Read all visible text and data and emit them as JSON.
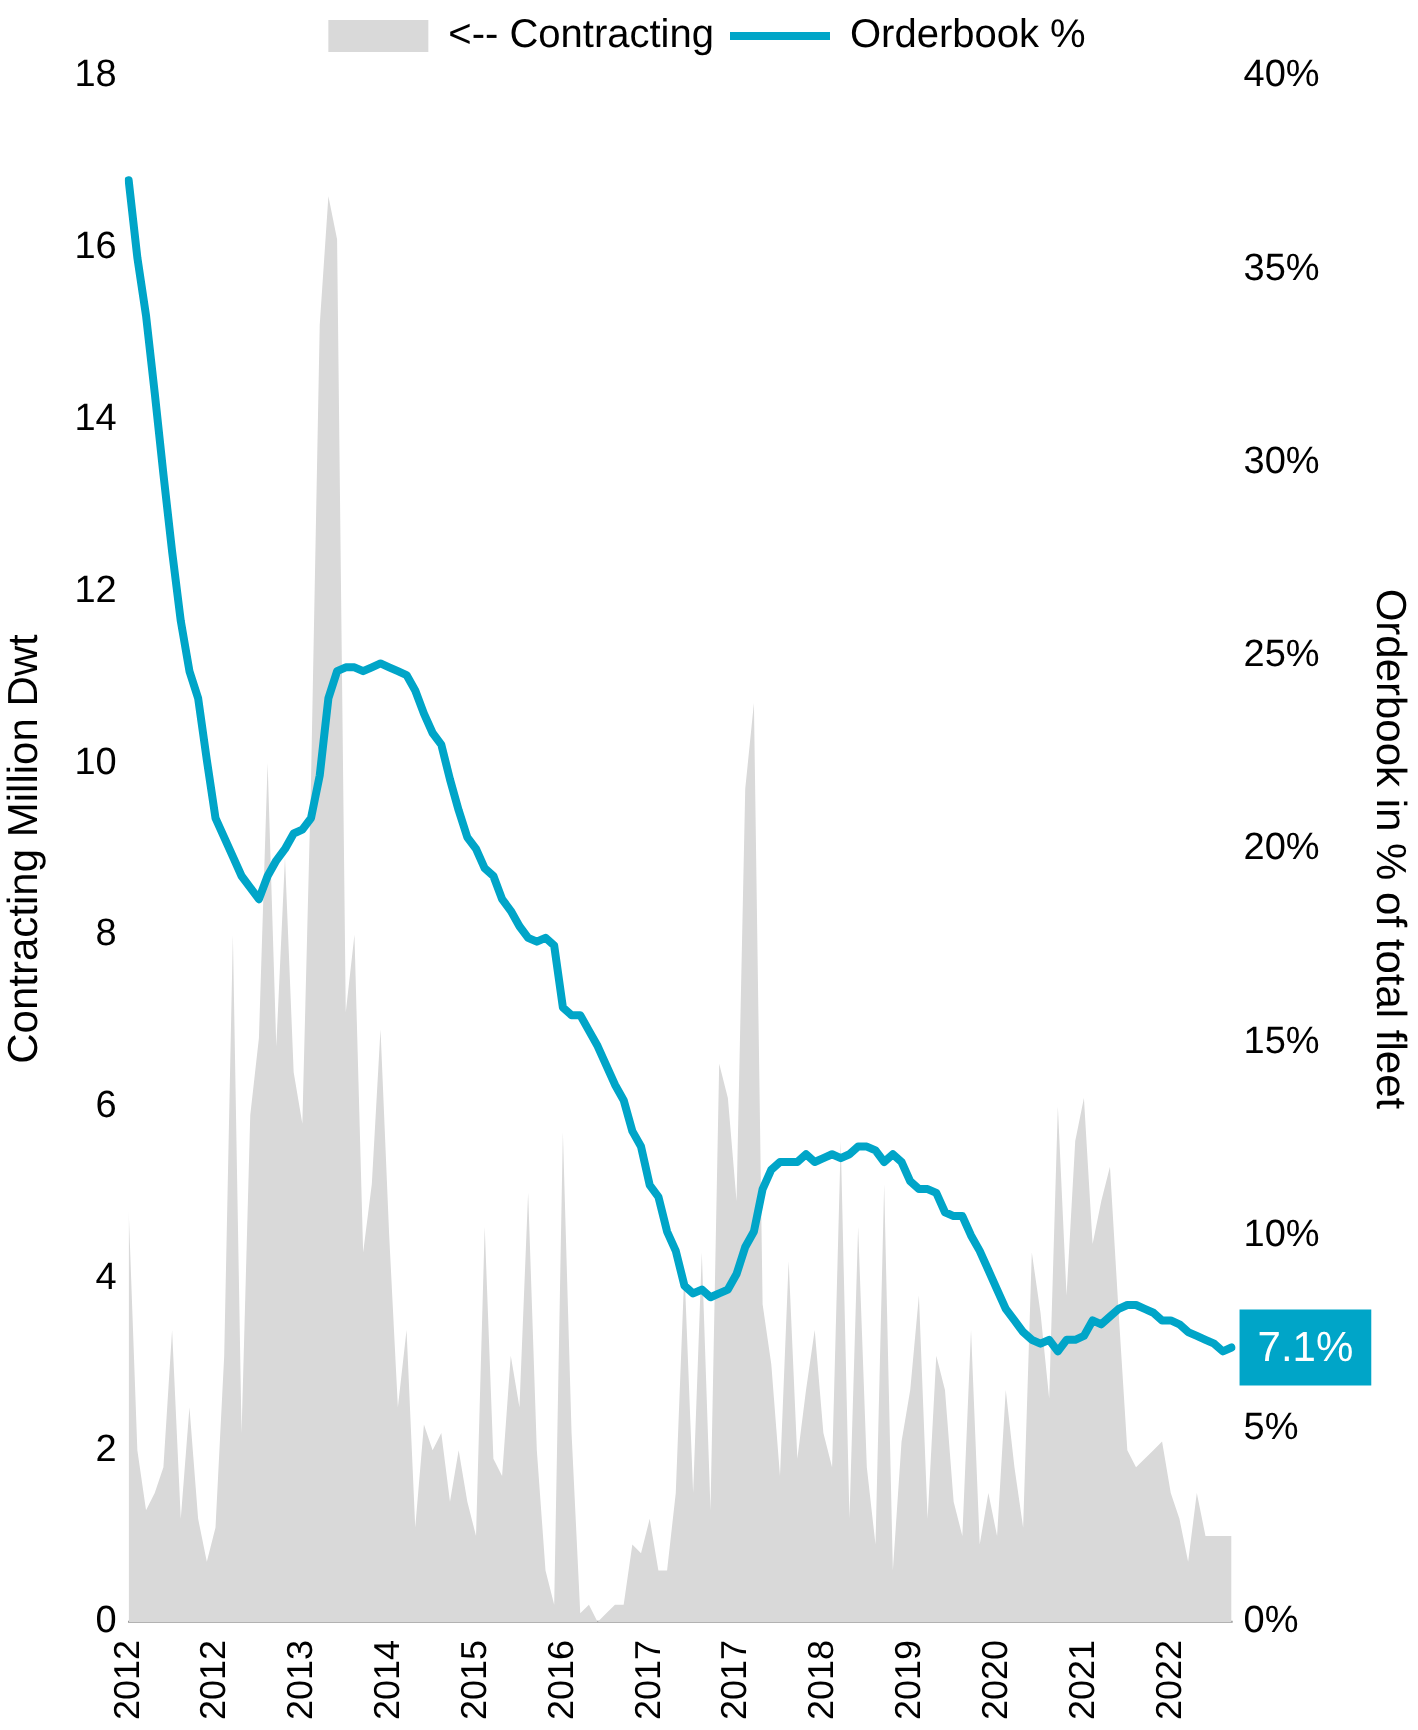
{
  "chart_data": {
    "type": "line",
    "ylabel": "Contracting Million Dwt",
    "y2label": "Orderbook in % of total fleet",
    "categories": [
      "2012",
      null,
      null,
      null,
      null,
      null,
      null,
      null,
      null,
      null,
      "2012",
      null,
      null,
      null,
      null,
      null,
      null,
      null,
      null,
      null,
      "2013",
      null,
      null,
      null,
      null,
      null,
      null,
      null,
      null,
      null,
      "2014",
      null,
      null,
      null,
      null,
      null,
      null,
      null,
      null,
      null,
      "2015",
      null,
      null,
      null,
      null,
      null,
      null,
      null,
      null,
      null,
      "2016",
      null,
      null,
      null,
      null,
      null,
      null,
      null,
      null,
      null,
      "2017",
      null,
      null,
      null,
      null,
      null,
      null,
      null,
      null,
      null,
      "2017",
      null,
      null,
      null,
      null,
      null,
      null,
      null,
      null,
      null,
      "2018",
      null,
      null,
      null,
      null,
      null,
      null,
      null,
      null,
      null,
      "2019",
      null,
      null,
      null,
      null,
      null,
      null,
      null,
      null,
      null,
      "2020",
      null,
      null,
      null,
      null,
      null,
      null,
      null,
      null,
      null,
      "2021",
      null,
      null,
      null,
      null,
      null,
      null,
      null,
      null,
      null,
      "2022",
      null,
      null,
      null,
      null,
      null,
      null,
      null
    ],
    "series": [
      {
        "name": "<-- Contracting",
        "type": "area",
        "axis": "y",
        "color": "#d9d9d9",
        "values": [
          4.8,
          2.0,
          1.3,
          1.5,
          1.8,
          3.4,
          1.2,
          2.5,
          1.2,
          0.7,
          1.1,
          3.1,
          8.0,
          2.2,
          5.9,
          6.8,
          10.0,
          6.7,
          8.9,
          6.4,
          5.8,
          9.8,
          15.1,
          16.6,
          16.1,
          7.1,
          8.0,
          4.3,
          5.1,
          6.9,
          4.5,
          2.5,
          3.4,
          1.1,
          2.3,
          2.0,
          2.2,
          1.4,
          2.0,
          1.4,
          1.0,
          4.6,
          1.9,
          1.7,
          3.1,
          2.5,
          5.0,
          2.0,
          0.6,
          0.2,
          5.7,
          2.2,
          0.1,
          0.2,
          0.0,
          0.1,
          0.2,
          0.2,
          0.9,
          0.8,
          1.2,
          0.6,
          0.6,
          1.5,
          4.1,
          1.5,
          4.3,
          1.3,
          6.5,
          6.1,
          4.9,
          9.7,
          10.7,
          3.7,
          3.0,
          1.7,
          4.2,
          1.9,
          2.7,
          3.4,
          2.2,
          1.8,
          5.6,
          1.2,
          4.6,
          1.8,
          0.9,
          5.1,
          0.6,
          2.1,
          2.7,
          3.8,
          1.2,
          3.1,
          2.7,
          1.4,
          1.0,
          3.4,
          0.9,
          1.5,
          1.0,
          2.7,
          1.8,
          1.1,
          4.3,
          3.6,
          2.6,
          6.0,
          3.8,
          5.6,
          6.1,
          4.4,
          4.9,
          5.3,
          3.6,
          2.0,
          1.8,
          1.9,
          2.0,
          2.1,
          1.5,
          1.2,
          0.7,
          1.5,
          1.0,
          1.0,
          1.0,
          1.0
        ]
      },
      {
        "name": "Orderbook %",
        "axis": "y2",
        "color": "#00a5c8",
        "values": [
          37.3,
          35.3,
          33.8,
          31.8,
          29.7,
          27.7,
          25.9,
          24.6,
          23.9,
          22.3,
          20.8,
          20.3,
          19.8,
          19.3,
          19.0,
          18.7,
          19.3,
          19.7,
          20.0,
          20.4,
          20.5,
          20.8,
          21.9,
          23.9,
          24.6,
          24.7,
          24.7,
          24.6,
          24.7,
          24.8,
          24.7,
          24.6,
          24.5,
          24.1,
          23.5,
          23.0,
          22.7,
          21.8,
          21.0,
          20.3,
          20.0,
          19.5,
          19.3,
          18.7,
          18.4,
          18.0,
          17.7,
          17.6,
          17.7,
          17.5,
          15.9,
          15.7,
          15.7,
          15.3,
          14.9,
          14.4,
          13.9,
          13.5,
          12.7,
          12.3,
          11.3,
          11.0,
          10.1,
          9.6,
          8.7,
          8.5,
          8.6,
          8.4,
          8.5,
          8.6,
          9.0,
          9.7,
          10.1,
          11.2,
          11.7,
          11.9,
          11.9,
          11.9,
          12.1,
          11.9,
          12.0,
          12.1,
          12.0,
          12.1,
          12.3,
          12.3,
          12.2,
          11.9,
          12.1,
          11.9,
          11.4,
          11.2,
          11.2,
          11.1,
          10.6,
          10.5,
          10.5,
          10.0,
          9.6,
          9.1,
          8.6,
          8.1,
          7.8,
          7.5,
          7.3,
          7.2,
          7.3,
          7.0,
          7.3,
          7.3,
          7.4,
          7.8,
          7.7,
          7.9,
          8.1,
          8.2,
          8.2,
          8.1,
          8.0,
          7.8,
          7.8,
          7.7,
          7.5,
          7.4,
          7.3,
          7.2,
          7.0,
          7.1
        ]
      }
    ],
    "ylim": [
      0,
      18
    ],
    "yticks": [
      0,
      2,
      4,
      6,
      8,
      10,
      12,
      14,
      16,
      18
    ],
    "y2lim": [
      0,
      40
    ],
    "y2ticks": [
      {
        "value": 0,
        "label": "0%"
      },
      {
        "value": 5,
        "label": "5%"
      },
      {
        "value": 10,
        "label": "10%"
      },
      {
        "value": 15,
        "label": "15%"
      },
      {
        "value": 20,
        "label": "20%"
      },
      {
        "value": 25,
        "label": "25%"
      },
      {
        "value": 30,
        "label": "30%"
      },
      {
        "value": 35,
        "label": "35%"
      },
      {
        "value": 40,
        "label": "40%"
      }
    ],
    "annotations": [
      "7.1%"
    ],
    "grid": false,
    "legend": "top",
    "marker": "none"
  }
}
